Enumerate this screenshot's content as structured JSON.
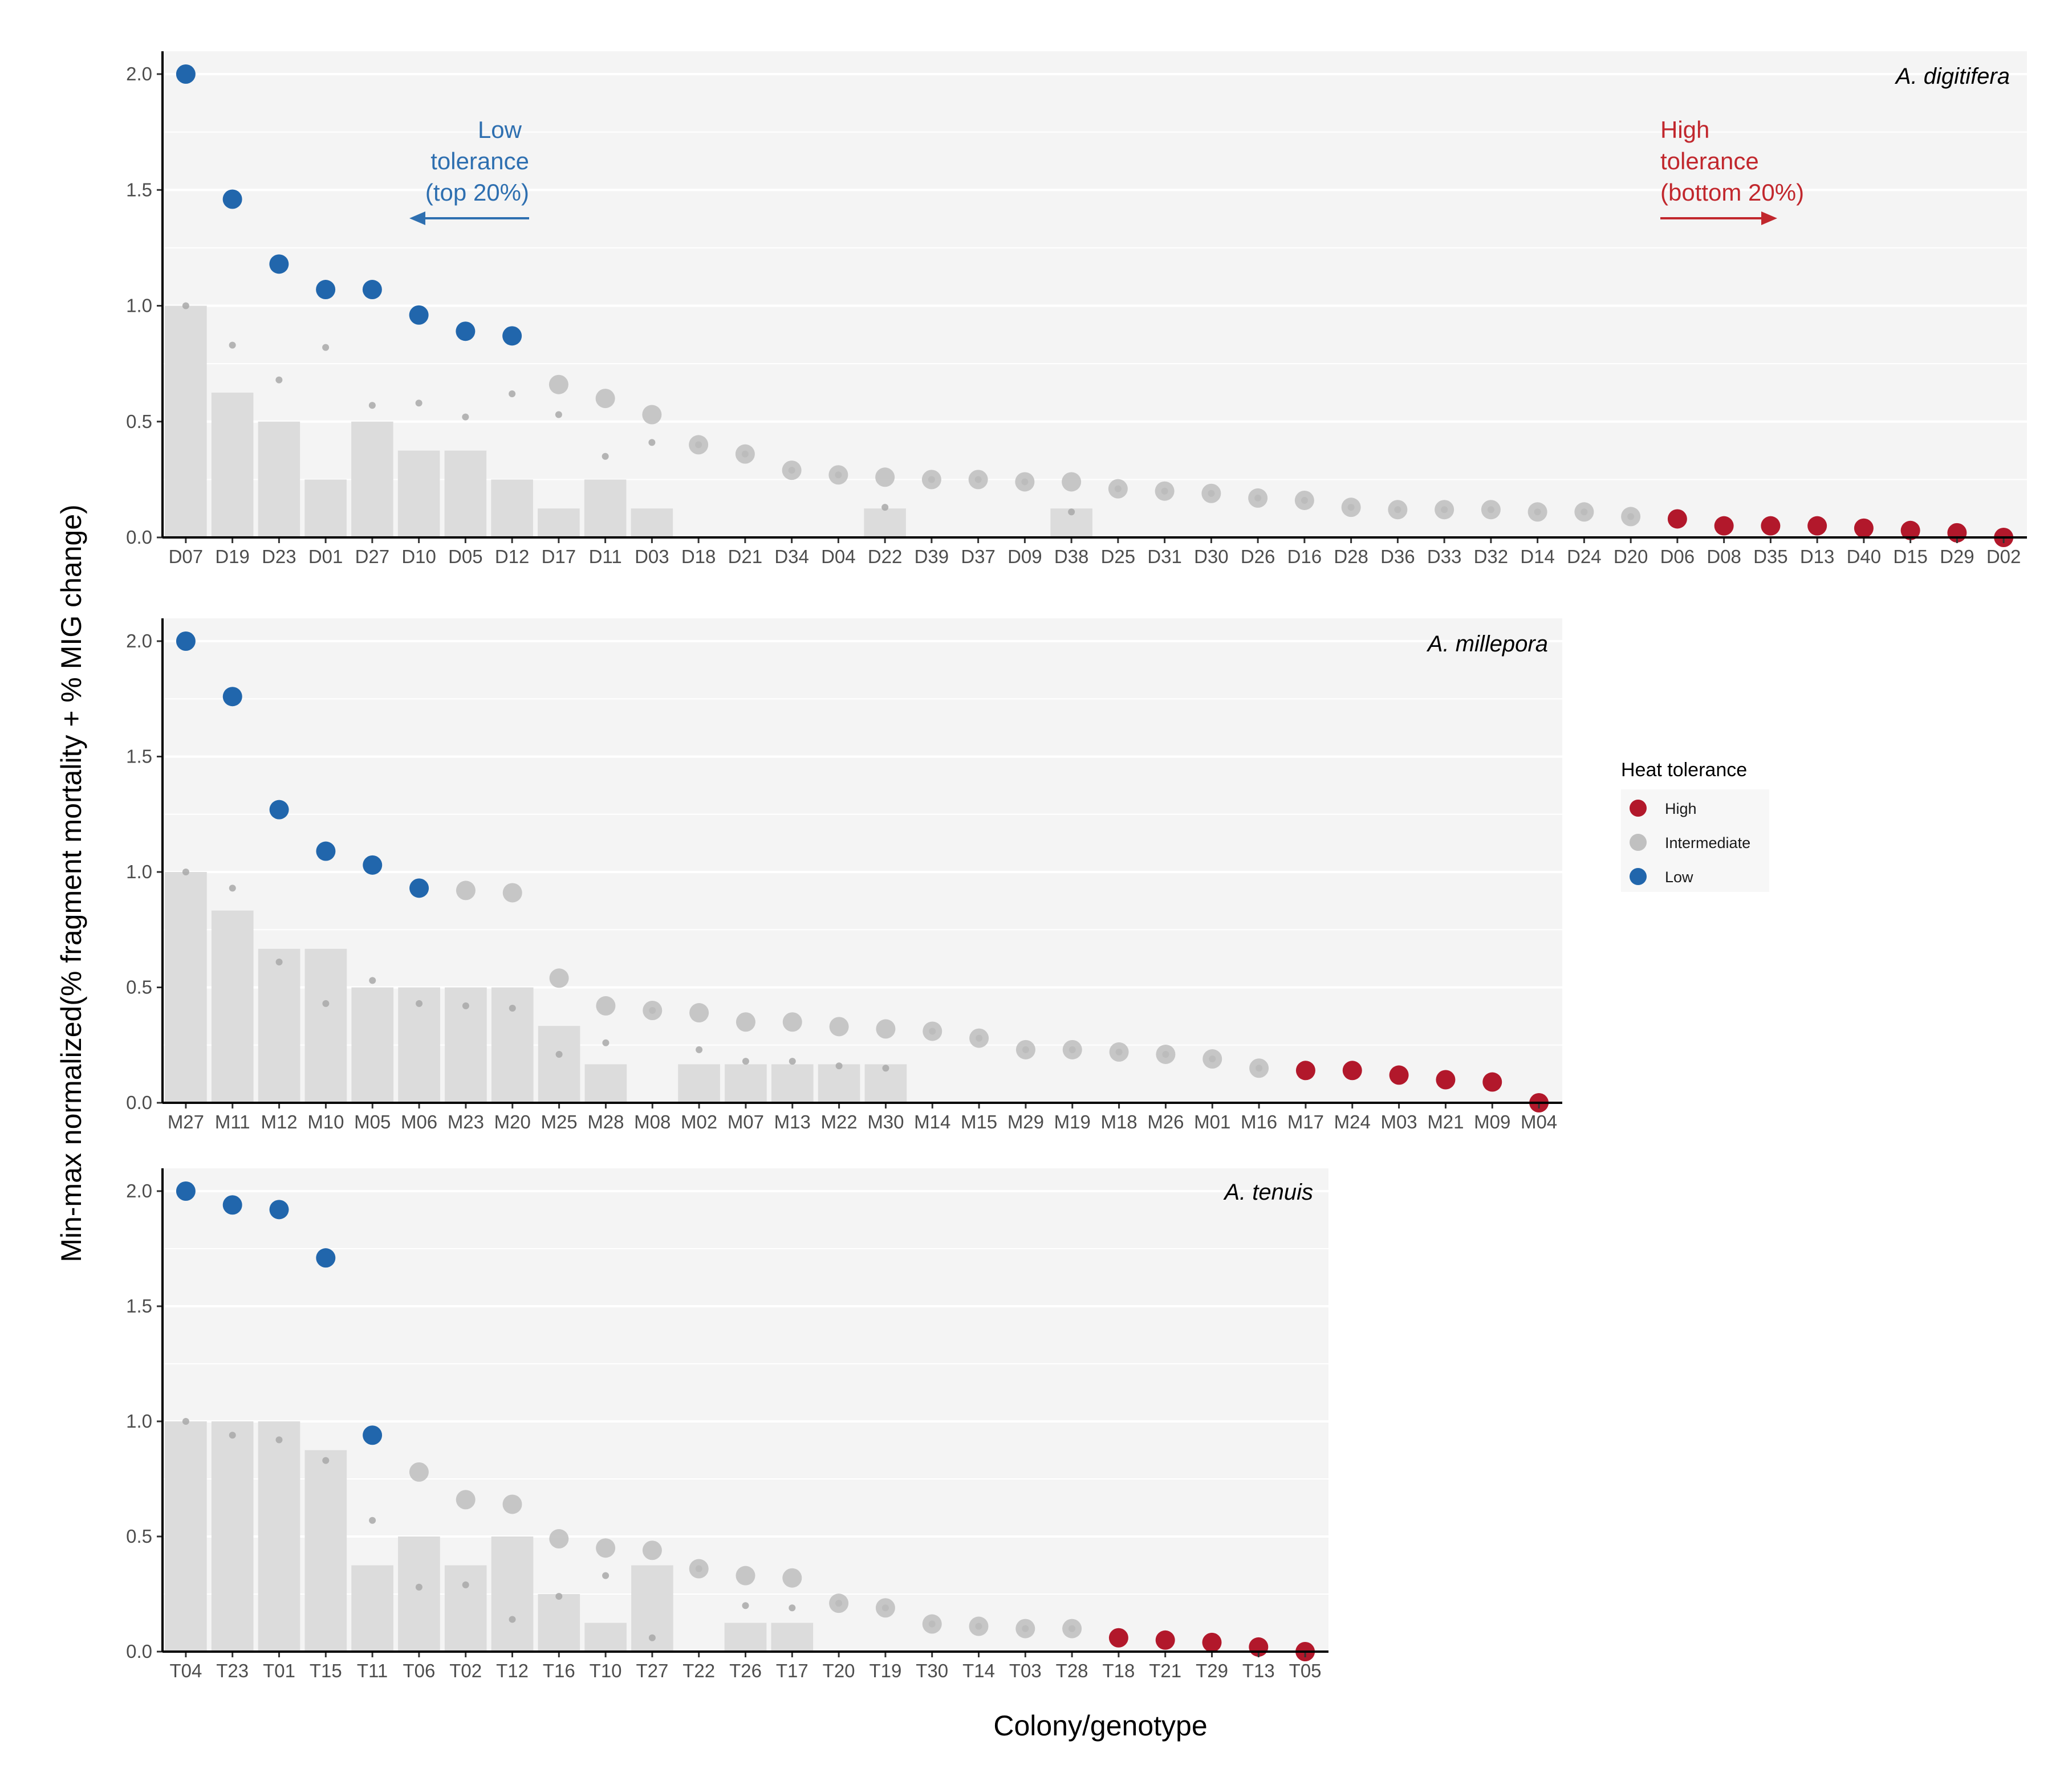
{
  "figure": {
    "ylabel": "Min-max normalized(% fragment mortality + % MIG change)",
    "xlabel": "Colony/genotype"
  },
  "legend": {
    "title": "Heat tolerance",
    "items": [
      {
        "label": "High",
        "color": "#b2182b"
      },
      {
        "label": "Intermediate",
        "color": "#c0c0c0"
      },
      {
        "label": "Low",
        "color": "#2166ac"
      }
    ]
  },
  "annotations": {
    "low": {
      "lines": [
        "Low",
        "tolerance",
        "(top 20%)"
      ],
      "color": "#2e6fb0",
      "arrow": "left"
    },
    "high": {
      "lines": [
        "High",
        "tolerance",
        "(bottom 20%)"
      ],
      "color": "#c1272d",
      "arrow": "right"
    }
  },
  "colors": {
    "high": "#b2182b",
    "intermediate": "#bdbdbd",
    "low": "#2166ac",
    "bar": "#dcdcdc",
    "panel_bg": "#f4f4f4"
  },
  "chart_data": [
    {
      "type": "bar",
      "title": "A. digitifera",
      "ylim": [
        0,
        2
      ],
      "yticks": [
        "0.0",
        "0.5",
        "1.0",
        "1.5",
        "2.0"
      ],
      "grid": true,
      "categories": [
        "D07",
        "D19",
        "D23",
        "D01",
        "D27",
        "D10",
        "D05",
        "D12",
        "D17",
        "D11",
        "D03",
        "D18",
        "D21",
        "D34",
        "D04",
        "D22",
        "D39",
        "D37",
        "D09",
        "D38",
        "D25",
        "D31",
        "D30",
        "D26",
        "D16",
        "D28",
        "D36",
        "D33",
        "D32",
        "D14",
        "D24",
        "D20",
        "D06",
        "D08",
        "D35",
        "D13",
        "D40",
        "D15",
        "D29",
        "D02"
      ],
      "tolerance": [
        "Low",
        "Low",
        "Low",
        "Low",
        "Low",
        "Low",
        "Low",
        "Low",
        "Intermediate",
        "Intermediate",
        "Intermediate",
        "Intermediate",
        "Intermediate",
        "Intermediate",
        "Intermediate",
        "Intermediate",
        "Intermediate",
        "Intermediate",
        "Intermediate",
        "Intermediate",
        "Intermediate",
        "Intermediate",
        "Intermediate",
        "Intermediate",
        "Intermediate",
        "Intermediate",
        "Intermediate",
        "Intermediate",
        "Intermediate",
        "Intermediate",
        "Intermediate",
        "Intermediate",
        "High",
        "High",
        "High",
        "High",
        "High",
        "High",
        "High",
        "High"
      ],
      "score": [
        2.0,
        1.46,
        1.18,
        1.07,
        1.07,
        0.96,
        0.89,
        0.87,
        0.66,
        0.6,
        0.53,
        0.4,
        0.36,
        0.29,
        0.27,
        0.26,
        0.25,
        0.25,
        0.24,
        0.24,
        0.21,
        0.2,
        0.19,
        0.17,
        0.16,
        0.13,
        0.12,
        0.12,
        0.12,
        0.11,
        0.11,
        0.09,
        0.08,
        0.05,
        0.05,
        0.05,
        0.04,
        0.03,
        0.02,
        0.0
      ],
      "mortality": [
        1.0,
        0.625,
        0.5,
        0.25,
        0.5,
        0.375,
        0.375,
        0.25,
        0.125,
        0.25,
        0.125,
        0,
        0,
        0,
        0,
        0.125,
        0,
        0,
        0,
        0.125,
        0,
        0,
        0,
        0,
        0,
        0,
        0,
        0,
        0,
        0,
        0,
        0,
        0,
        0,
        0,
        0,
        0,
        0,
        0,
        0
      ],
      "mig_change": [
        1.0,
        0.83,
        0.68,
        0.82,
        0.57,
        0.58,
        0.52,
        0.62,
        0.53,
        0.35,
        0.41,
        0.4,
        0.36,
        0.29,
        0.27,
        0.13,
        0.25,
        0.25,
        0.24,
        0.11,
        0.21,
        0.2,
        0.19,
        0.17,
        0.16,
        0.13,
        0.12,
        0.12,
        0.12,
        0.11,
        0.11,
        0.09,
        0.08,
        0.05,
        0.05,
        0.05,
        0.04,
        0.03,
        0.02,
        0.0
      ]
    },
    {
      "type": "bar",
      "title": "A. millepora",
      "ylim": [
        0,
        2
      ],
      "yticks": [
        "0.0",
        "0.5",
        "1.0",
        "1.5",
        "2.0"
      ],
      "grid": true,
      "categories": [
        "M27",
        "M11",
        "M12",
        "M10",
        "M05",
        "M06",
        "M23",
        "M20",
        "M25",
        "M28",
        "M08",
        "M02",
        "M07",
        "M13",
        "M22",
        "M30",
        "M14",
        "M15",
        "M29",
        "M19",
        "M18",
        "M26",
        "M01",
        "M16",
        "M17",
        "M24",
        "M03",
        "M21",
        "M09",
        "M04"
      ],
      "tolerance": [
        "Low",
        "Low",
        "Low",
        "Low",
        "Low",
        "Low",
        "Intermediate",
        "Intermediate",
        "Intermediate",
        "Intermediate",
        "Intermediate",
        "Intermediate",
        "Intermediate",
        "Intermediate",
        "Intermediate",
        "Intermediate",
        "Intermediate",
        "Intermediate",
        "Intermediate",
        "Intermediate",
        "Intermediate",
        "Intermediate",
        "Intermediate",
        "Intermediate",
        "High",
        "High",
        "High",
        "High",
        "High",
        "High"
      ],
      "score": [
        2.0,
        1.76,
        1.27,
        1.09,
        1.03,
        0.93,
        0.92,
        0.91,
        0.54,
        0.42,
        0.4,
        0.39,
        0.35,
        0.35,
        0.33,
        0.32,
        0.31,
        0.28,
        0.23,
        0.23,
        0.22,
        0.21,
        0.19,
        0.15,
        0.14,
        0.14,
        0.12,
        0.1,
        0.09,
        0.0
      ],
      "mortality": [
        1.0,
        0.833,
        0.667,
        0.667,
        0.5,
        0.5,
        0.5,
        0.5,
        0.333,
        0.167,
        0,
        0.167,
        0.167,
        0.167,
        0.167,
        0.167,
        0,
        0,
        0,
        0,
        0,
        0,
        0,
        0,
        0,
        0,
        0,
        0,
        0,
        0
      ],
      "mig_change": [
        1.0,
        0.93,
        0.61,
        0.43,
        0.53,
        0.43,
        0.42,
        0.41,
        0.21,
        0.26,
        0.4,
        0.23,
        0.18,
        0.18,
        0.16,
        0.15,
        0.31,
        0.28,
        0.23,
        0.23,
        0.22,
        0.21,
        0.19,
        0.15,
        0.14,
        0.14,
        0.12,
        0.1,
        0.09,
        0.0
      ]
    },
    {
      "type": "bar",
      "title": "A. tenuis",
      "ylim": [
        0,
        2
      ],
      "yticks": [
        "0.0",
        "0.5",
        "1.0",
        "1.5",
        "2.0"
      ],
      "grid": true,
      "categories": [
        "T04",
        "T23",
        "T01",
        "T15",
        "T11",
        "T06",
        "T02",
        "T12",
        "T16",
        "T10",
        "T27",
        "T22",
        "T26",
        "T17",
        "T20",
        "T19",
        "T30",
        "T14",
        "T03",
        "T28",
        "T18",
        "T21",
        "T29",
        "T13",
        "T05"
      ],
      "tolerance": [
        "Low",
        "Low",
        "Low",
        "Low",
        "Low",
        "Intermediate",
        "Intermediate",
        "Intermediate",
        "Intermediate",
        "Intermediate",
        "Intermediate",
        "Intermediate",
        "Intermediate",
        "Intermediate",
        "Intermediate",
        "Intermediate",
        "Intermediate",
        "Intermediate",
        "Intermediate",
        "Intermediate",
        "High",
        "High",
        "High",
        "High",
        "High"
      ],
      "score": [
        2.0,
        1.94,
        1.92,
        1.71,
        0.94,
        0.78,
        0.66,
        0.64,
        0.49,
        0.45,
        0.44,
        0.36,
        0.33,
        0.32,
        0.21,
        0.19,
        0.12,
        0.11,
        0.1,
        0.1,
        0.06,
        0.05,
        0.04,
        0.02,
        0.0
      ],
      "mortality": [
        1.0,
        1.0,
        1.0,
        0.875,
        0.375,
        0.5,
        0.375,
        0.5,
        0.25,
        0.125,
        0.375,
        0,
        0.125,
        0.125,
        0,
        0,
        0,
        0,
        0,
        0,
        0,
        0,
        0,
        0,
        0
      ],
      "mig_change": [
        1.0,
        0.94,
        0.92,
        0.83,
        0.57,
        0.28,
        0.29,
        0.14,
        0.24,
        0.33,
        0.06,
        0.36,
        0.2,
        0.19,
        0.21,
        0.19,
        0.12,
        0.11,
        0.1,
        0.1,
        0.06,
        0.05,
        0.04,
        0.02,
        0.0
      ]
    }
  ]
}
